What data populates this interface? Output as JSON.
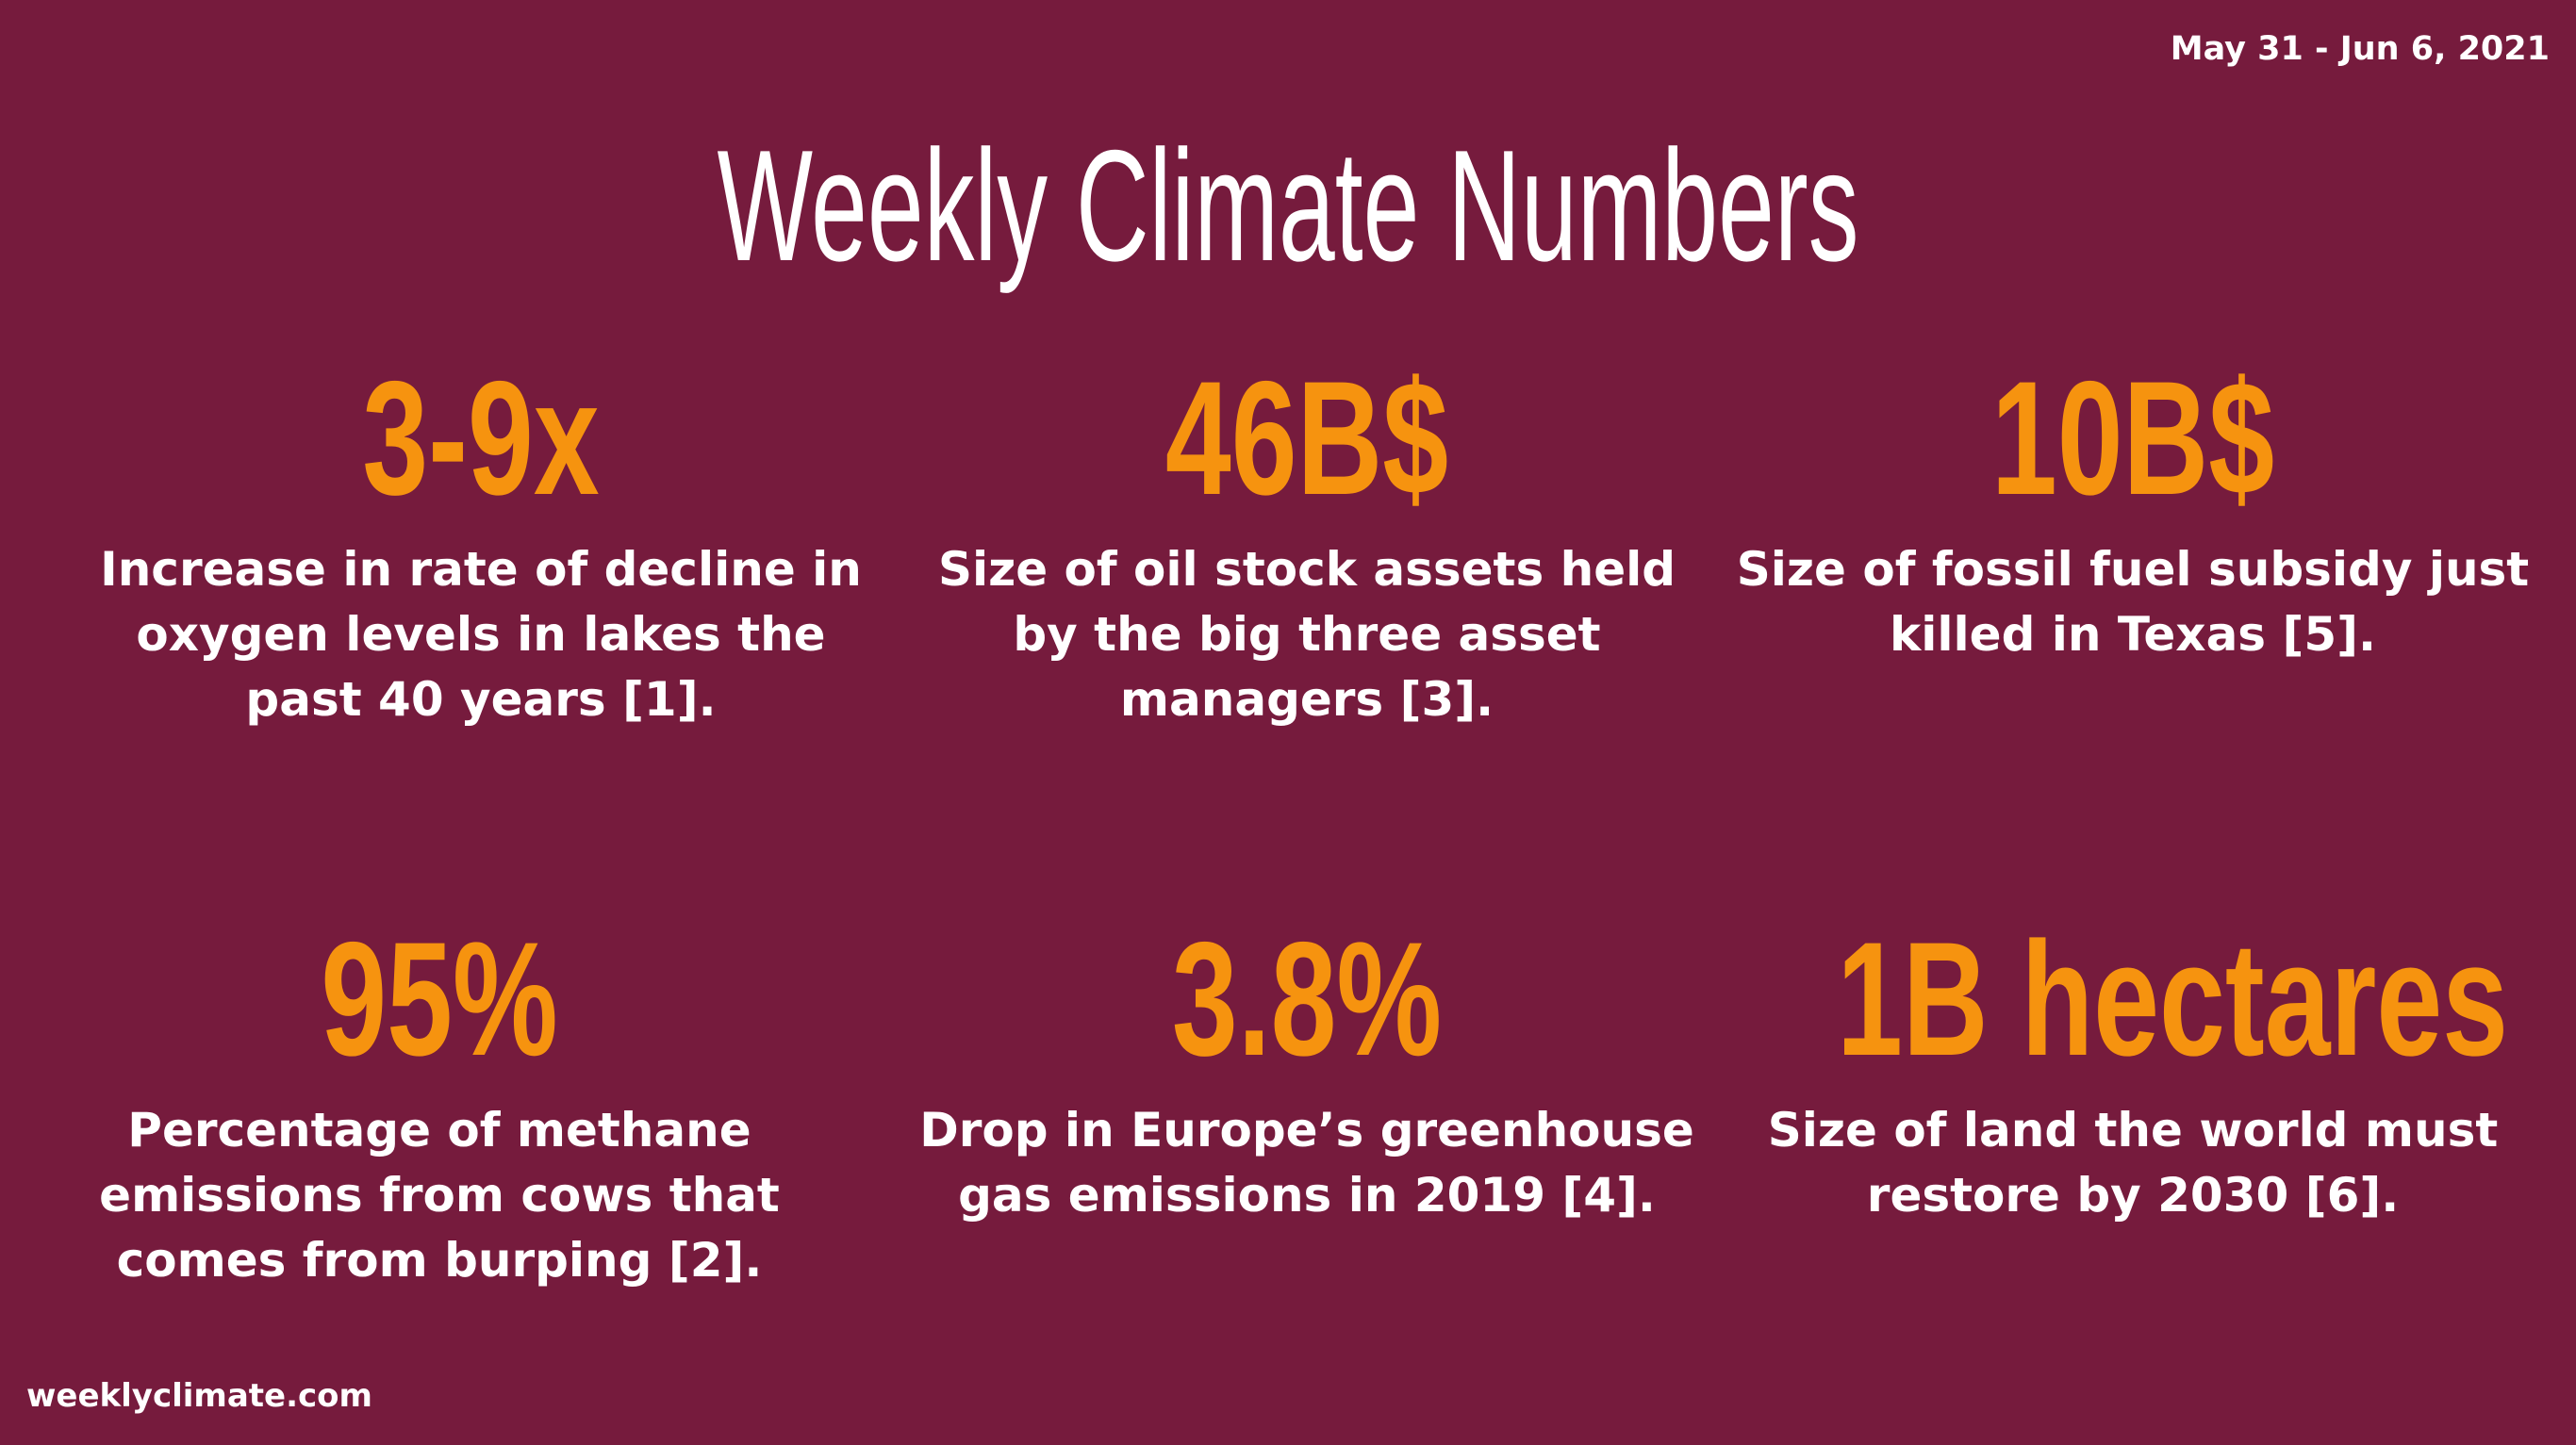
{
  "header": {
    "date_range": "May 31 - Jun 6, 2021",
    "title": "Weekly Climate Numbers"
  },
  "stats": [
    {
      "value": "3-9x",
      "description": "Increase in rate of decline in oxygen levels in lakes the past 40 years [1]."
    },
    {
      "value": "46B$",
      "description": "Size of oil stock assets held by the big three asset managers [3]."
    },
    {
      "value": "10B$",
      "description": "Size of fossil fuel subsidy just killed in Texas [5]."
    },
    {
      "value": "95%",
      "description": "Percentage of methane emissions from cows that comes from burping [2]."
    },
    {
      "value": "3.8%",
      "description": "Drop in Europe’s greenhouse gas emissions in 2019 [4]."
    },
    {
      "value": "1B hectares",
      "description": "Size of land the world must restore by 2030 [6]."
    }
  ],
  "footer": {
    "website": "weeklyclimate.com"
  },
  "colors": {
    "background": "#761b3d",
    "accent": "#f6930f",
    "text": "#ffffff"
  }
}
